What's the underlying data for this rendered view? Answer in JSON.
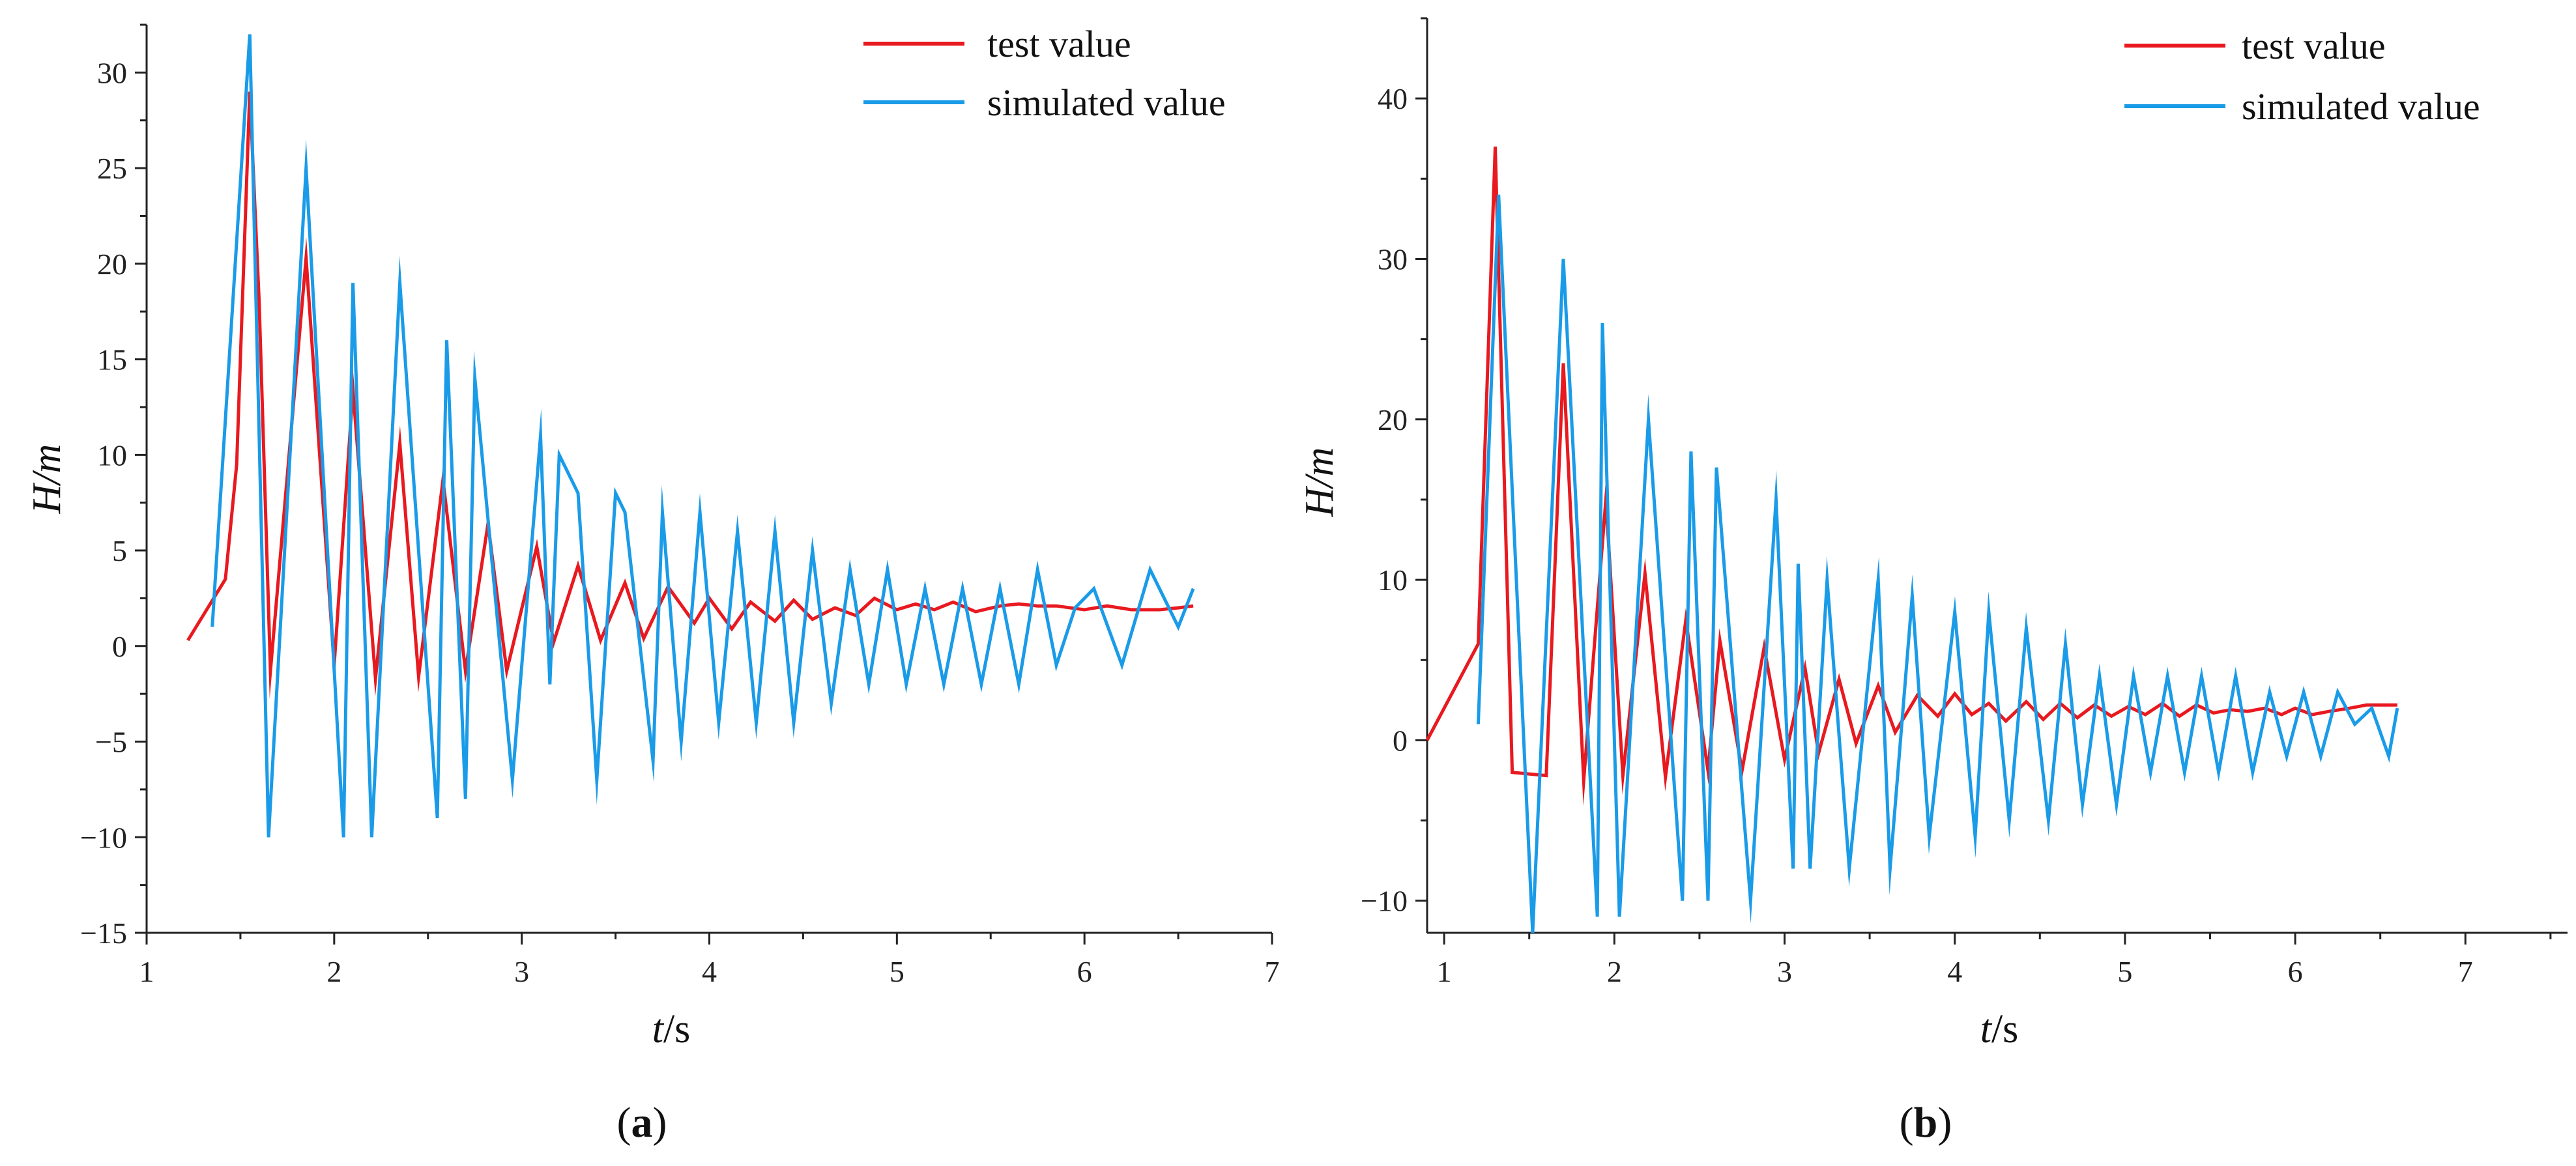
{
  "chart_data": [
    {
      "type": "line",
      "panel_label": "a",
      "xlabel_var": "t",
      "xlabel_unit": "/s",
      "ylabel": "H/m",
      "xlim": [
        1,
        7
      ],
      "ylim": [
        -15,
        32.5
      ],
      "xticks": [
        "1",
        "2",
        "3",
        "4",
        "5",
        "6",
        "7"
      ],
      "yticks": [
        "−15",
        "−10",
        "−5",
        "0",
        "5",
        "10",
        "15",
        "20",
        "25",
        "30"
      ],
      "ytick_values": [
        -15,
        -10,
        -5,
        0,
        5,
        10,
        15,
        20,
        25,
        30
      ],
      "legend_position": "top-right",
      "series": [
        {
          "name": "test value",
          "color": "#e8191f",
          "x": [
            1.22,
            1.42,
            1.48,
            1.55,
            1.6,
            1.66,
            1.85,
            2.0,
            2.1,
            2.22,
            2.35,
            2.45,
            2.58,
            2.7,
            2.82,
            2.92,
            3.08,
            3.17,
            3.3,
            3.42,
            3.55,
            3.65,
            3.78,
            3.92,
            4.0,
            4.12,
            4.22,
            4.35,
            4.45,
            4.55,
            4.67,
            4.78,
            4.88,
            5.0,
            5.1,
            5.2,
            5.3,
            5.42,
            5.55,
            5.65,
            5.75,
            5.85,
            6.0,
            6.12,
            6.25,
            6.4,
            6.5,
            6.58
          ],
          "y": [
            0.3,
            3.5,
            9.5,
            29,
            18,
            -1.3,
            20.3,
            -1,
            13.4,
            -1.7,
            10.6,
            -1.6,
            8.7,
            -1.3,
            6.4,
            -1.3,
            5.2,
            0.2,
            4.2,
            0.3,
            3.3,
            0.4,
            3.1,
            1.2,
            2.5,
            0.9,
            2.3,
            1.3,
            2.4,
            1.4,
            2.0,
            1.6,
            2.5,
            1.9,
            2.2,
            1.9,
            2.3,
            1.8,
            2.1,
            2.2,
            2.1,
            2.1,
            1.9,
            2.1,
            1.9,
            1.9,
            2.0,
            2.1
          ]
        },
        {
          "name": "simulated value",
          "color": "#1a9be8",
          "x": [
            1.35,
            1.55,
            1.65,
            1.85,
            2.05,
            2.1,
            2.2,
            2.35,
            2.55,
            2.6,
            2.7,
            2.75,
            2.95,
            3.1,
            3.15,
            3.2,
            3.3,
            3.4,
            3.5,
            3.55,
            3.7,
            3.75,
            3.85,
            3.95,
            4.05,
            4.15,
            4.25,
            4.35,
            4.45,
            4.55,
            4.65,
            4.75,
            4.85,
            4.95,
            5.05,
            5.15,
            5.25,
            5.35,
            5.45,
            5.55,
            5.65,
            5.75,
            5.85,
            5.95,
            6.05,
            6.2,
            6.35,
            6.5,
            6.58
          ],
          "y": [
            1,
            32,
            -10,
            25,
            -10,
            19,
            -10,
            19,
            -9,
            16,
            -8,
            14,
            -7,
            11,
            -2,
            10,
            8,
            -7,
            8,
            7,
            -6,
            7,
            -5,
            7,
            -4,
            6,
            -4,
            6,
            -4,
            5,
            -3,
            4,
            -2,
            4,
            -2,
            3,
            -2,
            3,
            -2,
            3,
            -2,
            4,
            -1,
            2,
            3,
            -1,
            4,
            1,
            3
          ]
        }
      ]
    },
    {
      "type": "line",
      "panel_label": "b",
      "xlabel_var": "t",
      "xlabel_unit": "/s",
      "ylabel": "H/m",
      "xlim": [
        0.9,
        7.6
      ],
      "ylim": [
        -12,
        45
      ],
      "xticks": [
        "1",
        "2",
        "3",
        "4",
        "5",
        "6",
        "7"
      ],
      "yticks": [
        "−10",
        "0",
        "10",
        "20",
        "30",
        "40"
      ],
      "ytick_values": [
        -10,
        0,
        10,
        20,
        30,
        40
      ],
      "legend_position": "top-right",
      "series": [
        {
          "name": "test value",
          "color": "#e8191f",
          "x": [
            0.9,
            1.2,
            1.3,
            1.4,
            1.6,
            1.7,
            1.82,
            1.95,
            2.05,
            2.18,
            2.3,
            2.42,
            2.55,
            2.62,
            2.75,
            2.88,
            3.0,
            3.12,
            3.2,
            3.32,
            3.42,
            3.55,
            3.65,
            3.78,
            3.9,
            4.0,
            4.1,
            4.2,
            4.3,
            4.42,
            4.52,
            4.62,
            4.72,
            4.82,
            4.92,
            5.02,
            5.12,
            5.22,
            5.32,
            5.42,
            5.52,
            5.62,
            5.72,
            5.82,
            5.92,
            6.0,
            6.1,
            6.2,
            6.32,
            6.42,
            6.6
          ],
          "y": [
            0,
            6,
            37,
            -2,
            -2.2,
            23.5,
            -2.5,
            15,
            -2.2,
            10.4,
            -2.3,
            7.5,
            -1.9,
            6.2,
            -1.9,
            5.8,
            -1.2,
            4.5,
            -0.8,
            3.8,
            -0.2,
            3.4,
            0.5,
            2.8,
            1.5,
            2.9,
            1.6,
            2.3,
            1.2,
            2.4,
            1.3,
            2.3,
            1.4,
            2.2,
            1.5,
            2.1,
            1.6,
            2.3,
            1.5,
            2.2,
            1.7,
            1.9,
            1.8,
            2.0,
            1.6,
            2.0,
            1.6,
            1.8,
            2.0,
            2.2,
            2.2
          ]
        },
        {
          "name": "simulated value",
          "color": "#1a9be8",
          "x": [
            1.2,
            1.32,
            1.52,
            1.7,
            1.9,
            1.93,
            2.03,
            2.2,
            2.4,
            2.45,
            2.55,
            2.6,
            2.8,
            2.95,
            3.05,
            3.08,
            3.15,
            3.25,
            3.38,
            3.55,
            3.62,
            3.75,
            3.85,
            4.0,
            4.12,
            4.2,
            4.32,
            4.42,
            4.55,
            4.65,
            4.75,
            4.85,
            4.95,
            5.05,
            5.15,
            5.25,
            5.35,
            5.45,
            5.55,
            5.65,
            5.75,
            5.85,
            5.95,
            6.05,
            6.15,
            6.25,
            6.35,
            6.45,
            6.55,
            6.6
          ],
          "y": [
            1,
            34,
            -12,
            30,
            -11,
            26,
            -11,
            20,
            -10,
            18,
            -10,
            17,
            -10,
            15,
            -8,
            11,
            -8,
            10,
            -8,
            10,
            -8,
            9,
            -6,
            8,
            -6,
            8,
            -5,
            7,
            -5,
            6,
            -4,
            4,
            -4,
            4,
            -2,
            4,
            -2,
            4,
            -2,
            4,
            -2,
            3,
            -1,
            3,
            -1,
            3,
            1,
            2,
            -1,
            2
          ]
        }
      ]
    }
  ]
}
